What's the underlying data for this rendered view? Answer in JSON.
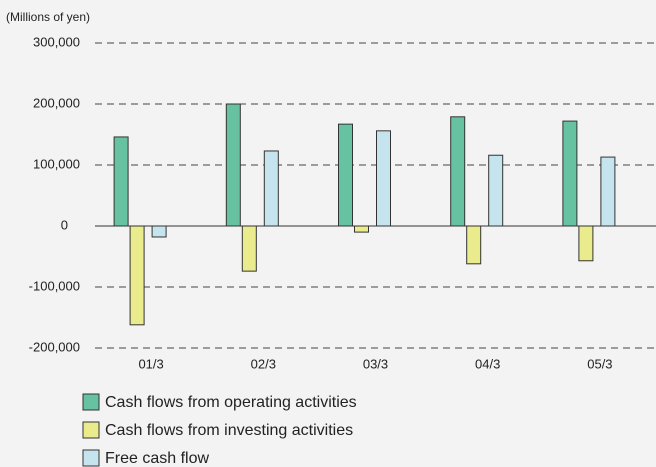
{
  "chart_data": {
    "type": "bar",
    "y_label": "(Millions of yen)",
    "categories": [
      "01/3",
      "02/3",
      "03/3",
      "04/3",
      "05/3"
    ],
    "series": [
      {
        "name": "Cash flows from operating activities",
        "color": "#66c2a0",
        "values": [
          146000,
          200000,
          167000,
          179000,
          172000
        ]
      },
      {
        "name": "Cash flows from investing activities",
        "color": "#e9eb8c",
        "values": [
          -162000,
          -74000,
          -10000,
          -62000,
          -57000
        ]
      },
      {
        "name": "Free cash flow",
        "color": "#c6e4ee",
        "values": [
          -18000,
          123000,
          156000,
          116000,
          113000
        ]
      }
    ],
    "ylim": [
      -200000,
      300000
    ],
    "yticks": [
      {
        "value": -200000,
        "label": "-200,000"
      },
      {
        "value": -100000,
        "label": "-100,000"
      },
      0,
      {
        "value": 100000,
        "label": "100,000"
      },
      {
        "value": 200000,
        "label": "200,000"
      },
      {
        "value": 300000,
        "label": "300,000"
      }
    ],
    "grid": true
  }
}
